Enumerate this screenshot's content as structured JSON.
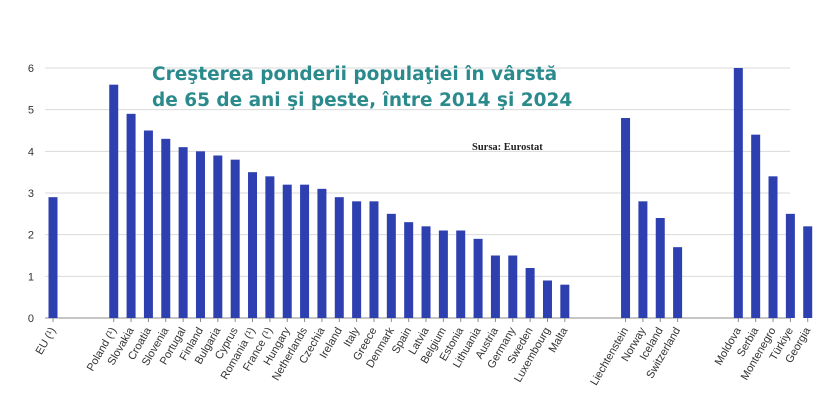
{
  "chart_data": {
    "type": "bar",
    "title_lines": [
      "Creşterea ponderii populaţiei în vârstă",
      "de 65 de ani şi peste, între 2014 şi 2024"
    ],
    "source": "Sursa: Eurostat",
    "categories": [
      "EU (¹)",
      "Poland (¹)",
      "Slovakia",
      "Croatia",
      "Slovenia",
      "Portugal",
      "Finland",
      "Bulgaria",
      "Cyprus",
      "Romania (¹)",
      "France (¹)",
      "Hungary",
      "Netherlands",
      "Czechia",
      "Ireland",
      "Italy",
      "Greece",
      "Denmark",
      "Spain",
      "Latvia",
      "Belgium",
      "Estonia",
      "Lithuania",
      "Austria",
      "Germany",
      "Sweden",
      "Luxembourg",
      "Malta",
      "Liechtenstein",
      "Norway",
      "Iceland",
      "Switzerland",
      "Moldova",
      "Serbia",
      "Montenegro",
      "Türkiye",
      "Georgia"
    ],
    "groups": [
      1,
      27,
      4,
      5
    ],
    "values": [
      2.9,
      5.6,
      4.9,
      4.5,
      4.3,
      4.1,
      4.0,
      3.9,
      3.8,
      3.5,
      3.4,
      3.2,
      3.2,
      3.1,
      2.9,
      2.8,
      2.8,
      2.5,
      2.3,
      2.2,
      2.1,
      2.1,
      1.9,
      1.5,
      1.5,
      1.2,
      0.9,
      0.8,
      4.8,
      2.8,
      2.4,
      1.7,
      6.0,
      4.4,
      3.4,
      2.5,
      2.2
    ],
    "ylim": [
      0,
      6
    ],
    "yticks": [
      "0",
      "1",
      "2",
      "3",
      "4",
      "5",
      "6"
    ],
    "grid": true,
    "colors": {
      "bar": "#2e3fb0",
      "grid": "#d9d9d9",
      "axis": "#8c8c8c",
      "text": "#333333"
    }
  }
}
